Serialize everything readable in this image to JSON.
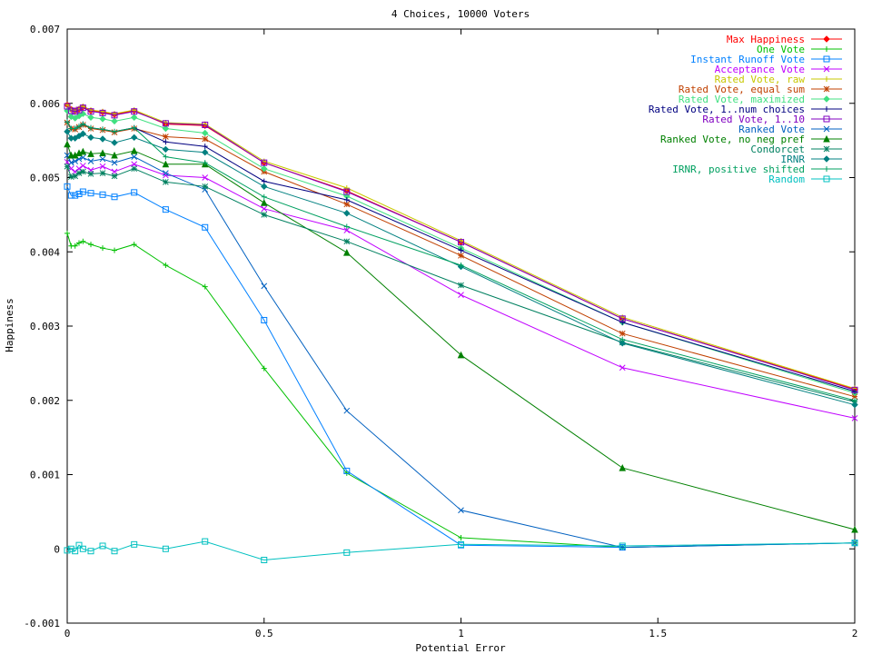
{
  "chart_data": {
    "type": "line",
    "title": "4 Choices, 10000 Voters",
    "xlabel": "Potential Error",
    "ylabel": "Happiness",
    "xlim": [
      0,
      2
    ],
    "ylim": [
      -0.001,
      0.007
    ],
    "xticks": [
      0,
      0.5,
      1,
      1.5,
      2
    ],
    "xtick_labels": [
      "0",
      "0.5",
      "1",
      "1.5",
      "2"
    ],
    "yticks": [
      -0.001,
      0,
      0.001,
      0.002,
      0.003,
      0.004,
      0.005,
      0.006,
      0.007
    ],
    "ytick_labels": [
      "-0.001",
      "0",
      "0.001",
      "0.002",
      "0.003",
      "0.004",
      "0.005",
      "0.006",
      "0.007"
    ],
    "grid": false,
    "legend_position": "top-right",
    "x": [
      0,
      0.01,
      0.02,
      0.03,
      0.04,
      0.06,
      0.09,
      0.12,
      0.17,
      0.25,
      0.35,
      0.5,
      0.71,
      1.0,
      1.41,
      2.0
    ],
    "series": [
      {
        "name": "Max Happiness",
        "color": "#ff0000",
        "marker": "diamond",
        "values": [
          0.00598,
          0.00592,
          0.0059,
          0.00592,
          0.00595,
          0.0059,
          0.00588,
          0.00585,
          0.0059,
          0.00572,
          0.0057,
          0.0052,
          0.00482,
          0.00413,
          0.0031,
          0.00215
        ]
      },
      {
        "name": "One Vote",
        "color": "#00c000",
        "marker": "plus",
        "values": [
          0.00425,
          0.00408,
          0.00408,
          0.00412,
          0.00414,
          0.0041,
          0.00405,
          0.00402,
          0.0041,
          0.00382,
          0.00353,
          0.00243,
          0.00102,
          0.00015,
          2e-05,
          8e-05
        ]
      },
      {
        "name": "Instant Runoff Vote",
        "color": "#0080ff",
        "marker": "square",
        "values": [
          0.00488,
          0.00476,
          0.00476,
          0.00478,
          0.00481,
          0.00479,
          0.00477,
          0.00474,
          0.0048,
          0.00457,
          0.00433,
          0.00308,
          0.00105,
          5e-05,
          2e-05,
          8e-05
        ]
      },
      {
        "name": "Acceptance Vote",
        "color": "#c000ff",
        "marker": "x",
        "values": [
          0.00521,
          0.00512,
          0.00508,
          0.00512,
          0.00516,
          0.0051,
          0.00515,
          0.00508,
          0.00518,
          0.00503,
          0.005,
          0.00458,
          0.00429,
          0.00342,
          0.00244,
          0.00176
        ]
      },
      {
        "name": "Rated Vote, raw",
        "color": "#c8c800",
        "marker": "plus",
        "values": [
          0.00598,
          0.00592,
          0.0059,
          0.00593,
          0.00596,
          0.00591,
          0.00589,
          0.00586,
          0.00591,
          0.00574,
          0.00572,
          0.00522,
          0.00486,
          0.00415,
          0.00312,
          0.00216
        ]
      },
      {
        "name": "Rated Vote, equal sum",
        "color": "#c04000",
        "marker": "star",
        "values": [
          0.00574,
          0.00566,
          0.00565,
          0.00568,
          0.00571,
          0.00566,
          0.00564,
          0.00561,
          0.00566,
          0.00555,
          0.00552,
          0.00508,
          0.00464,
          0.00395,
          0.0029,
          0.00205
        ]
      },
      {
        "name": "Rated Vote, maximized",
        "color": "#40e080",
        "marker": "diamond",
        "values": [
          0.0059,
          0.00582,
          0.0058,
          0.00583,
          0.00586,
          0.00581,
          0.00579,
          0.00576,
          0.00581,
          0.00566,
          0.0056,
          0.00512,
          0.00475,
          0.00405,
          0.00305,
          0.0021
        ]
      },
      {
        "name": "Rated Vote, 1..num choices",
        "color": "#000080",
        "marker": "plus",
        "values": [
          0.00575,
          0.00566,
          0.00566,
          0.00569,
          0.00572,
          0.00567,
          0.00565,
          0.00562,
          0.00567,
          0.00548,
          0.00542,
          0.00495,
          0.0047,
          0.00402,
          0.00305,
          0.00212
        ]
      },
      {
        "name": "Rated Vote, 1..10",
        "color": "#8000c0",
        "marker": "square",
        "values": [
          0.00596,
          0.0059,
          0.00589,
          0.00591,
          0.00594,
          0.00589,
          0.00587,
          0.00584,
          0.00589,
          0.00573,
          0.00571,
          0.0052,
          0.00481,
          0.00413,
          0.0031,
          0.00214
        ]
      },
      {
        "name": "Ranked Vote",
        "color": "#0060c0",
        "marker": "x",
        "values": [
          0.0053,
          0.0052,
          0.00522,
          0.00525,
          0.00527,
          0.00522,
          0.00525,
          0.0052,
          0.00528,
          0.00506,
          0.00484,
          0.00354,
          0.00186,
          0.00052,
          2e-05,
          8e-05
        ]
      },
      {
        "name": "Ranked Vote, no neg pref",
        "color": "#008000",
        "marker": "triangle",
        "values": [
          0.00545,
          0.0053,
          0.0053,
          0.00533,
          0.00535,
          0.00532,
          0.00533,
          0.0053,
          0.00536,
          0.00518,
          0.00518,
          0.00466,
          0.00399,
          0.00261,
          0.00109,
          0.00026
        ]
      },
      {
        "name": "Condorcet",
        "color": "#008060",
        "marker": "star",
        "values": [
          0.00515,
          0.00501,
          0.00502,
          0.00506,
          0.00508,
          0.00505,
          0.00506,
          0.00502,
          0.00512,
          0.00494,
          0.00488,
          0.0045,
          0.00414,
          0.00355,
          0.00278,
          0.00198
        ]
      },
      {
        "name": "IRNR",
        "color": "#008080",
        "marker": "diamond",
        "values": [
          0.00562,
          0.00553,
          0.00553,
          0.00556,
          0.00559,
          0.00554,
          0.00552,
          0.00547,
          0.00554,
          0.00538,
          0.00534,
          0.00488,
          0.00452,
          0.0038,
          0.00277,
          0.00194
        ]
      },
      {
        "name": "IRNR, positive shifted",
        "color": "#00a060",
        "marker": "plus",
        "values": [
          0.00575,
          0.00566,
          0.00566,
          0.00569,
          0.00572,
          0.00567,
          0.00565,
          0.00562,
          0.00567,
          0.00528,
          0.0052,
          0.00474,
          0.00434,
          0.00382,
          0.00282,
          0.002
        ]
      },
      {
        "name": "Random",
        "color": "#00c0c0",
        "marker": "square",
        "values": [
          -2e-05,
          0.0,
          -3e-05,
          5e-05,
          0.0,
          -3e-05,
          4e-05,
          -3e-05,
          6e-05,
          0.0,
          0.0001,
          -0.00015,
          -5e-05,
          6e-05,
          4e-05,
          8e-05
        ]
      }
    ]
  }
}
